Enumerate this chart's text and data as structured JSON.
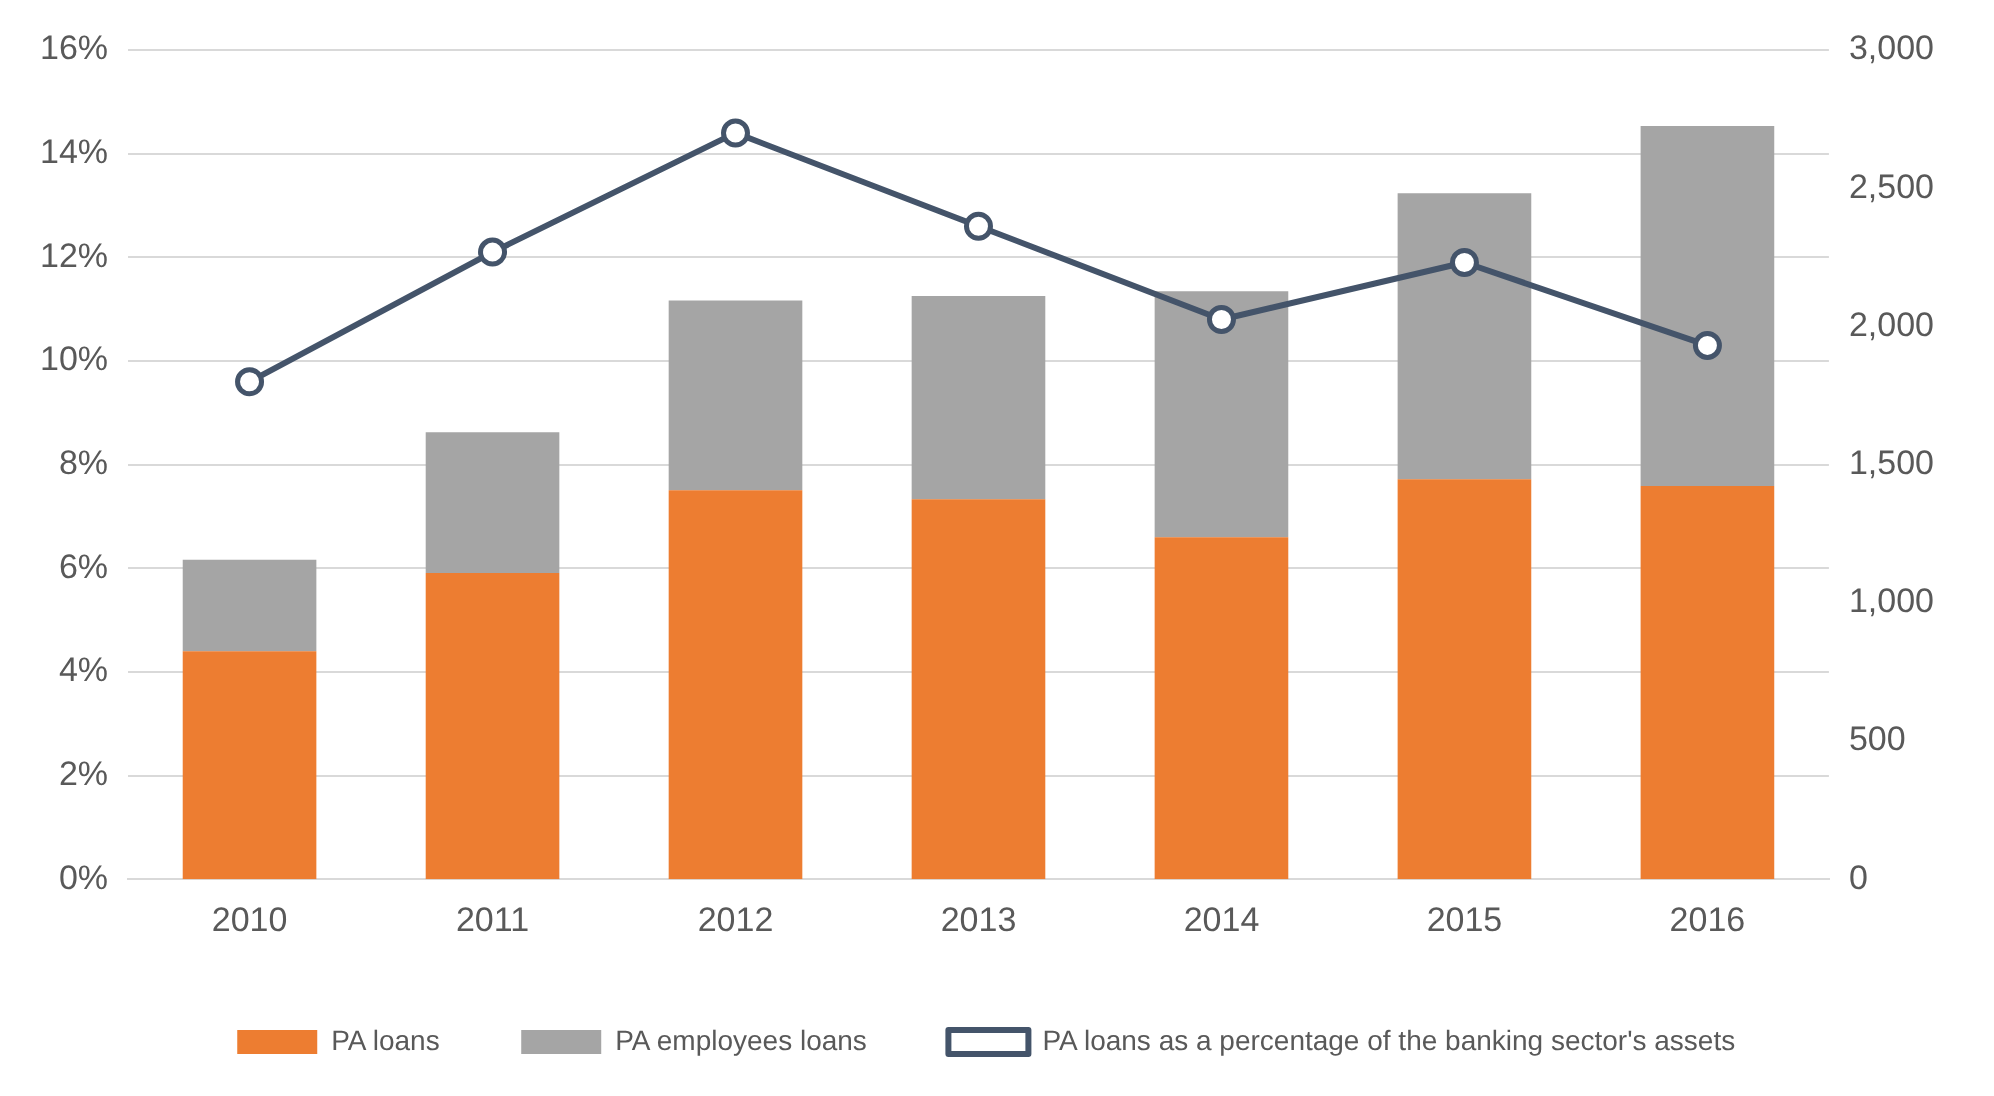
{
  "chart_data": {
    "type": "bar",
    "stacked": true,
    "categories": [
      "2010",
      "2011",
      "2012",
      "2013",
      "2014",
      "2015",
      "2016"
    ],
    "series": [
      {
        "name": "PA loans",
        "axis": "y2",
        "color": "#ed7d31",
        "values": [
          825,
          1108,
          1407,
          1375,
          1237,
          1447,
          1423
        ]
      },
      {
        "name": "PA employees loans",
        "axis": "y2",
        "color": "#a5a5a5",
        "values": [
          331,
          509,
          687,
          735,
          890,
          1035,
          1302
        ]
      },
      {
        "name": "PA loans as a percentage of the banking sector's assets",
        "type": "line",
        "color": "#44546a",
        "values": [
          9.6,
          12.1,
          14.4,
          12.6,
          10.8,
          11.9,
          10.3
        ]
      }
    ],
    "ylim": [
      0,
      16
    ],
    "yticks": [
      {
        "value": 0,
        "label": "0%"
      },
      {
        "value": 2,
        "label": "2%"
      },
      {
        "value": 4,
        "label": "4%"
      },
      {
        "value": 6,
        "label": "6%"
      },
      {
        "value": 8,
        "label": "8%"
      },
      {
        "value": 10,
        "label": "10%"
      },
      {
        "value": 12,
        "label": "12%"
      },
      {
        "value": 14,
        "label": "14%"
      },
      {
        "value": 16,
        "label": "16%"
      }
    ],
    "y2lim": [
      0,
      3000
    ],
    "y2ticks": [
      0,
      {
        "value": 500,
        "label": "500"
      },
      {
        "value": 1000,
        "label": "1,000"
      },
      {
        "value": 1500,
        "label": "1,500"
      },
      {
        "value": 2000,
        "label": "2,000"
      },
      {
        "value": 2500,
        "label": "2,500"
      },
      {
        "value": 3000,
        "label": "3,000"
      }
    ],
    "grid": "y",
    "legend": "bottom",
    "marker": "circle",
    "line_style": "solid"
  }
}
